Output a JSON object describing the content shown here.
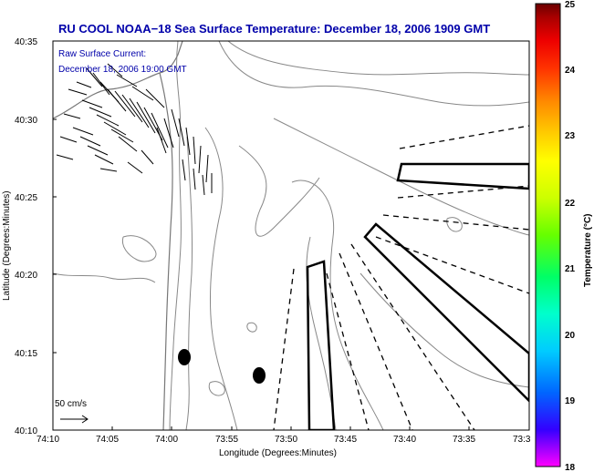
{
  "figure": {
    "title": "RU COOL  NOAA−18  Sea Surface Temperature:  December 18, 2006 1909 GMT",
    "subtitle_line1": "Raw Surface Current:",
    "subtitle_line2": "December 18, 2006 19:00 GMT",
    "xlabel": "Longitude (Degrees:Minutes)",
    "ylabel": "Latitude (Degrees:Minutes)",
    "scale_label": "50 cm/s",
    "x_ticks": [
      "74:10",
      "74:05",
      "74:00",
      "73:55",
      "73:50",
      "73:45",
      "73:40",
      "73:35",
      "73:3"
    ],
    "y_ticks": [
      "40:35",
      "40:30",
      "40:25",
      "40:20",
      "40:15",
      "40:10"
    ]
  },
  "colorbar": {
    "label": "Temperature (°C)",
    "ticks": [
      "25",
      "24",
      "23",
      "22",
      "21",
      "20",
      "19",
      "18"
    ],
    "min": 18,
    "max": 25,
    "colors": [
      "#ff00ff",
      "#3300ff",
      "#0066ff",
      "#00ccff",
      "#00ffcc",
      "#00ff66",
      "#66ff00",
      "#ccff00",
      "#ffff00",
      "#ffcc00",
      "#ff8800",
      "#ff3300",
      "#ee0000",
      "#aa0000",
      "#6a0000"
    ]
  },
  "colors": {
    "title": "#0000aa",
    "subtitle": "#0000aa",
    "frame": "#000000",
    "contour": "#888888"
  }
}
